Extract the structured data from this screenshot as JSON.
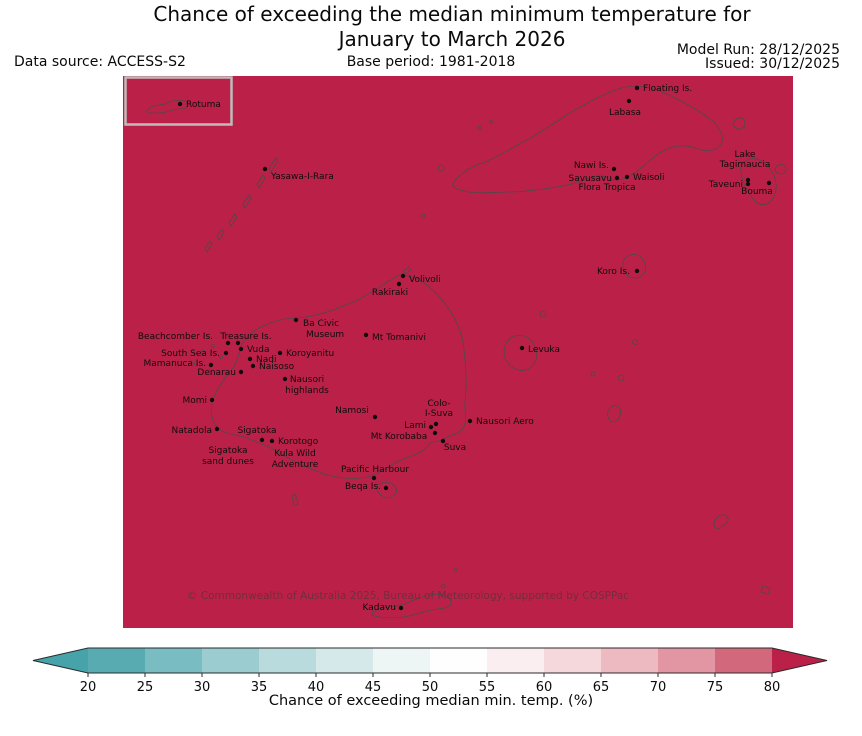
{
  "header": {
    "title_line1": "Chance of exceeding the median minimum temperature for",
    "title_line2": "January to March 2026",
    "model_run": "Model Run: 28/12/2025",
    "issued": "Issued: 30/12/2025",
    "data_source": "Data source: ACCESS-S2",
    "base_period": "Base period: 1981-2018"
  },
  "map": {
    "fill_color": "#bb2148",
    "coastline_color": "#4a4a4a",
    "copyright": "© Commonwealth of Australia 2025, Bureau of Meteorology, supported by COSPPac",
    "inset_label": "Rotuma",
    "places": [
      {
        "name": "Rotuma",
        "dot": [
          57,
          28
        ],
        "anchor": "start",
        "lines": [
          [
            "Rotuma",
            63,
            31
          ]
        ]
      },
      {
        "name": "Floating Is.",
        "dot": [
          514,
          12
        ],
        "anchor": "start",
        "lines": [
          [
            "Floating Is.",
            520,
            15
          ]
        ]
      },
      {
        "name": "Labasa",
        "dot": [
          506,
          25
        ],
        "anchor": "middle",
        "lines": [
          [
            "Labasa",
            502,
            39
          ]
        ]
      },
      {
        "name": "Yasawa-I-Rara",
        "dot": [
          142,
          93
        ],
        "anchor": "start",
        "lines": [
          [
            "Yasawa-I-Rara",
            148,
            103
          ]
        ]
      },
      {
        "name": "Nawi Is.",
        "dot": [
          491,
          93
        ],
        "anchor": "end",
        "lines": [
          [
            "Nawi Is.",
            486,
            92
          ]
        ]
      },
      {
        "name": "Savusavu",
        "dot": [
          494,
          102
        ],
        "anchor": "end",
        "lines": [
          [
            "Savusavu",
            489,
            105
          ]
        ]
      },
      {
        "name": "Waisoli",
        "dot": [
          504,
          101
        ],
        "anchor": "start",
        "lines": [
          [
            "Waisoli",
            510,
            104
          ]
        ]
      },
      {
        "name": "Flora Tropica",
        "dot": null,
        "anchor": "middle",
        "lines": [
          [
            "Flora Tropica",
            484,
            114
          ]
        ]
      },
      {
        "name": "Lake Tagimaucia",
        "dot": [
          625,
          104
        ],
        "anchor": "middle",
        "lines": [
          [
            "Lake",
            622,
            81
          ],
          [
            "Tagimaucia",
            622,
            91
          ]
        ]
      },
      {
        "name": "Taveuni",
        "dot": [
          625,
          108
        ],
        "anchor": "end",
        "lines": [
          [
            "Taveuni",
            620,
            111
          ]
        ]
      },
      {
        "name": "Bouma",
        "dot": [
          646,
          107
        ],
        "anchor": "middle",
        "lines": [
          [
            "Bouma",
            634,
            118
          ]
        ]
      },
      {
        "name": "Koro Is.",
        "dot": [
          514,
          195
        ],
        "anchor": "end",
        "lines": [
          [
            "Koro Is.",
            507,
            198
          ]
        ]
      },
      {
        "name": "Volivoli",
        "dot": [
          280,
          200
        ],
        "anchor": "start",
        "lines": [
          [
            "Volivoli",
            286,
            206
          ]
        ]
      },
      {
        "name": "Rakiraki",
        "dot": [
          276,
          208
        ],
        "anchor": "middle",
        "lines": [
          [
            "Rakiraki",
            267,
            219
          ]
        ]
      },
      {
        "name": "Ba Civic Museum",
        "dot": [
          173,
          244
        ],
        "anchor": "start",
        "lines": [
          [
            "Ba Civic",
            180,
            250
          ],
          [
            "Museum",
            183,
            261
          ]
        ]
      },
      {
        "name": "Mt Tomanivi",
        "dot": [
          243,
          259
        ],
        "anchor": "start",
        "lines": [
          [
            "Mt Tomanivi",
            249,
            264
          ]
        ]
      },
      {
        "name": "Treasure Is.",
        "dot": [
          115,
          267
        ],
        "anchor": "middle",
        "lines": [
          [
            "Treasure Is.",
            123,
            263
          ]
        ]
      },
      {
        "name": "Beachcomber Is.",
        "dot": [
          105,
          267
        ],
        "anchor": "end",
        "lines": [
          [
            "Beachcomber Is.",
            90,
            263
          ]
        ]
      },
      {
        "name": "Vuda",
        "dot": [
          118,
          273
        ],
        "anchor": "start",
        "lines": [
          [
            "Vuda",
            124,
            276
          ]
        ]
      },
      {
        "name": "South Sea Is.",
        "dot": [
          103,
          277
        ],
        "anchor": "end",
        "lines": [
          [
            "South Sea Is.",
            97,
            280
          ]
        ]
      },
      {
        "name": "Koroyanitu",
        "dot": [
          157,
          277
        ],
        "anchor": "start",
        "lines": [
          [
            "Koroyanitu",
            163,
            280
          ]
        ]
      },
      {
        "name": "Nadi",
        "dot": [
          127,
          283
        ],
        "anchor": "start",
        "lines": [
          [
            "Nadi",
            133,
            286
          ]
        ]
      },
      {
        "name": "Mamanuca Is.",
        "dot": [
          88,
          289
        ],
        "anchor": "end",
        "lines": [
          [
            "Mamanuca Is.",
            83,
            290
          ]
        ]
      },
      {
        "name": "Naisoso",
        "dot": [
          130,
          290
        ],
        "anchor": "start",
        "lines": [
          [
            "Naisoso",
            136,
            293
          ]
        ]
      },
      {
        "name": "Denarau",
        "dot": [
          118,
          296
        ],
        "anchor": "end",
        "lines": [
          [
            "Denarau",
            113,
            299
          ]
        ]
      },
      {
        "name": "Nausori highlands",
        "dot": [
          162,
          303
        ],
        "anchor": "middle",
        "lines": [
          [
            "Nausori",
            184,
            306
          ],
          [
            "highlands",
            184,
            317
          ]
        ]
      },
      {
        "name": "Levuka",
        "dot": [
          399,
          272
        ],
        "anchor": "start",
        "lines": [
          [
            "Levuka",
            405,
            276
          ]
        ]
      },
      {
        "name": "Momi",
        "dot": [
          89,
          324
        ],
        "anchor": "end",
        "lines": [
          [
            "Momi",
            84,
            327
          ]
        ]
      },
      {
        "name": "Namosi",
        "dot": [
          252,
          341
        ],
        "anchor": "middle",
        "lines": [
          [
            "Namosi",
            229,
            337
          ]
        ]
      },
      {
        "name": "Colo-I-Suva",
        "dot": [
          313,
          348
        ],
        "anchor": "middle",
        "lines": [
          [
            "Colo-",
            316,
            330
          ],
          [
            "I-Suva",
            316,
            340
          ]
        ]
      },
      {
        "name": "Nausori Aero",
        "dot": [
          347,
          345
        ],
        "anchor": "start",
        "lines": [
          [
            "Nausori Aero",
            353,
            348
          ]
        ]
      },
      {
        "name": "Lami",
        "dot": [
          308,
          351
        ],
        "anchor": "end",
        "lines": [
          [
            "Lami",
            303,
            352
          ]
        ]
      },
      {
        "name": "Mt Korobaba",
        "dot": [
          312,
          357
        ],
        "anchor": "middle",
        "lines": [
          [
            "Mt Korobaba",
            276,
            363
          ]
        ]
      },
      {
        "name": "Suva",
        "dot": [
          320,
          365
        ],
        "anchor": "middle",
        "lines": [
          [
            "Suva",
            332,
            374
          ]
        ]
      },
      {
        "name": "Natadola",
        "dot": [
          94,
          353
        ],
        "anchor": "end",
        "lines": [
          [
            "Natadola",
            89,
            357
          ]
        ]
      },
      {
        "name": "Sigatoka",
        "dot": [
          139,
          364
        ],
        "anchor": "middle",
        "lines": [
          [
            "Sigatoka",
            134,
            357
          ]
        ]
      },
      {
        "name": "Korotogo",
        "dot": [
          149,
          365
        ],
        "anchor": "start",
        "lines": [
          [
            "Korotogo",
            155,
            368
          ]
        ]
      },
      {
        "name": "Sigatoka sand dunes",
        "dot": null,
        "anchor": "middle",
        "lines": [
          [
            "Sigatoka",
            105,
            377
          ],
          [
            "sand dunes",
            105,
            388
          ]
        ]
      },
      {
        "name": "Kula Wild Adventure",
        "dot": null,
        "anchor": "middle",
        "lines": [
          [
            "Kula Wild",
            172,
            380
          ],
          [
            "Adventure",
            172,
            391
          ]
        ]
      },
      {
        "name": "Pacific Harbour",
        "dot": [
          251,
          402
        ],
        "anchor": "middle",
        "lines": [
          [
            "Pacific Harbour",
            252,
            396
          ]
        ]
      },
      {
        "name": "Beqa Is.",
        "dot": [
          263,
          412
        ],
        "anchor": "end",
        "lines": [
          [
            "Beqa Is.",
            258,
            413
          ]
        ]
      },
      {
        "name": "Kadavu",
        "dot": [
          278,
          532
        ],
        "anchor": "end",
        "lines": [
          [
            "Kadavu",
            273,
            534
          ]
        ]
      }
    ]
  },
  "chart_data": {
    "type": "heatmap",
    "title": "Chance of exceeding the median minimum temperature for January to March 2026",
    "value_depicted": "Entire mapped region shaded in the > 80% class (same color as the colorbar over-arrow)",
    "map_fill": "#bb2148",
    "colorbar": {
      "label": "Chance of exceeding median min. temp. (%)",
      "ticks": [
        20,
        25,
        30,
        35,
        40,
        45,
        50,
        55,
        60,
        65,
        70,
        75,
        80
      ],
      "segment_colors": [
        "#57abb1",
        "#79bcc1",
        "#9accd0",
        "#b9dbde",
        "#d5e9ea",
        "#edf5f5",
        "#fefefe",
        "#faeef0",
        "#f5d8dc",
        "#eebac2",
        "#e295a2",
        "#d2687c"
      ],
      "under_color": "#46a3a9",
      "over_color": "#bb2148",
      "extend": "both",
      "legend_position": "bottom"
    }
  }
}
